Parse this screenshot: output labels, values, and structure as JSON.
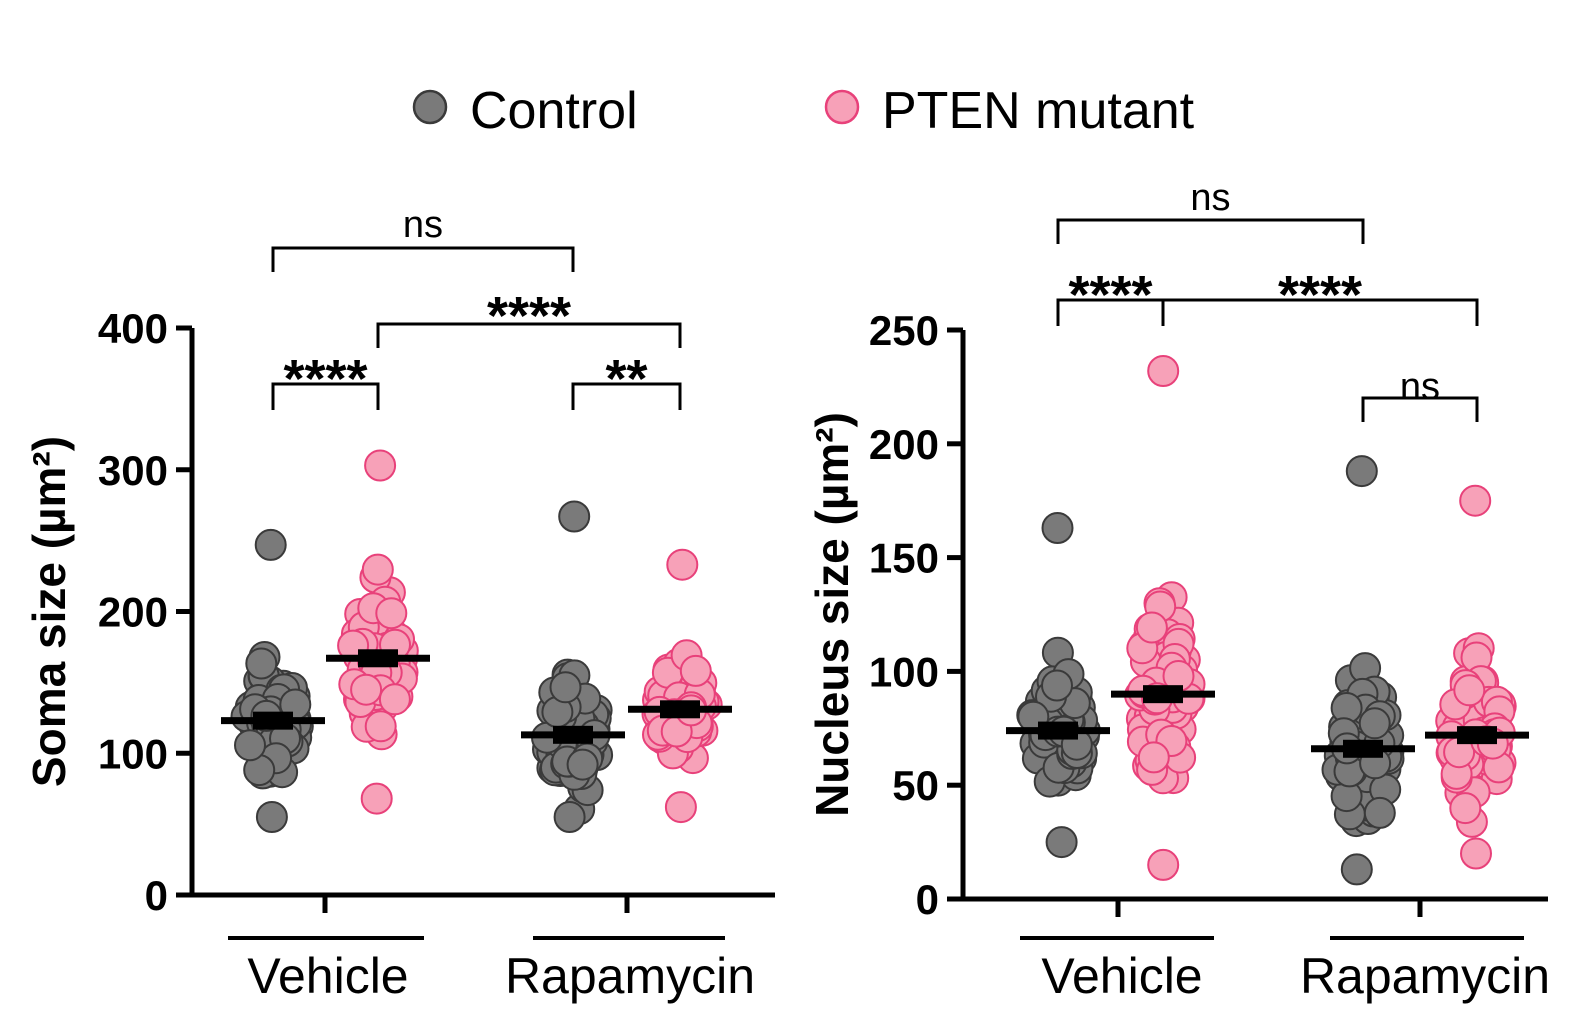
{
  "legend": [
    {
      "label": "Control",
      "color": "#7a7a7a",
      "edge": "#3a3a3a"
    },
    {
      "label": "PTEN mutant",
      "color": "#f7a1b8",
      "edge": "#e8417a"
    }
  ],
  "chart_data": [
    {
      "type": "scatter",
      "ylabel": "Soma size (µm²)",
      "ylim": [
        0,
        400
      ],
      "yticks": [
        "0",
        "100",
        "200",
        "300",
        "400"
      ],
      "group_labels": [
        "Vehicle",
        "Rapamycin"
      ],
      "series": [
        {
          "name": "Control",
          "group": "Vehicle",
          "mean": 123,
          "min": 55,
          "max": 247
        },
        {
          "name": "PTEN mutant",
          "group": "Vehicle",
          "mean": 167,
          "min": 68,
          "max": 303
        },
        {
          "name": "Control",
          "group": "Rapamycin",
          "mean": 113,
          "min": 55,
          "max": 267
        },
        {
          "name": "PTEN mutant",
          "group": "Rapamycin",
          "mean": 131,
          "min": 62,
          "max": 233
        }
      ],
      "comparisons": [
        {
          "from": 0,
          "to": 1,
          "label": "****"
        },
        {
          "from": 2,
          "to": 3,
          "label": "**"
        },
        {
          "from": 1,
          "to": 3,
          "label": "****"
        },
        {
          "from": 0,
          "to": 2,
          "label": "ns"
        }
      ]
    },
    {
      "type": "scatter",
      "ylabel": "Nucleus size (µm²)",
      "ylim": [
        0,
        250
      ],
      "yticks": [
        "0",
        "50",
        "100",
        "150",
        "200",
        "250"
      ],
      "group_labels": [
        "Vehicle",
        "Rapamycin"
      ],
      "series": [
        {
          "name": "Control",
          "group": "Vehicle",
          "mean": 74,
          "min": 25,
          "max": 163
        },
        {
          "name": "PTEN mutant",
          "group": "Vehicle",
          "mean": 90,
          "min": 15,
          "max": 232
        },
        {
          "name": "Control",
          "group": "Rapamycin",
          "mean": 66,
          "min": 13,
          "max": 188
        },
        {
          "name": "PTEN mutant",
          "group": "Rapamycin",
          "mean": 72,
          "min": 20,
          "max": 175
        }
      ],
      "comparisons": [
        {
          "from": 0,
          "to": 1,
          "label": "****"
        },
        {
          "from": 2,
          "to": 3,
          "label": "ns"
        },
        {
          "from": 1,
          "to": 3,
          "label": "****"
        },
        {
          "from": 0,
          "to": 2,
          "label": "ns"
        }
      ]
    }
  ]
}
